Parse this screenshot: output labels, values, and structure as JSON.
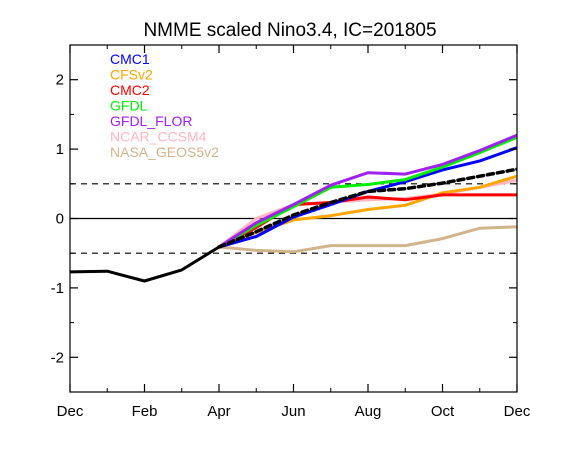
{
  "chart_data": {
    "type": "line",
    "title": "NMME scaled Nino3.4, IC=201805",
    "xlabel": "",
    "ylabel": "",
    "x_tick_labels": [
      "Dec",
      "Feb",
      "Apr",
      "Jun",
      "Aug",
      "Oct",
      "Dec"
    ],
    "x_tick_positions": [
      0,
      2,
      4,
      6,
      8,
      10,
      12
    ],
    "xlim": [
      0,
      12
    ],
    "y_tick_labels": [
      "2",
      "1",
      "0",
      "-1",
      "-2"
    ],
    "y_tick_values": [
      2,
      1,
      0,
      -1,
      -2
    ],
    "ylim": [
      -2.5,
      2.5
    ],
    "reference_lines": [
      {
        "value": 0,
        "style": "solid"
      },
      {
        "value": 0.5,
        "style": "dashed"
      },
      {
        "value": -0.5,
        "style": "dashed"
      }
    ],
    "observed": {
      "color": "#000000",
      "style": "solid",
      "x": [
        0,
        1,
        2,
        3,
        4
      ],
      "values": [
        -0.77,
        -0.76,
        -0.9,
        -0.74,
        -0.41
      ]
    },
    "series": [
      {
        "name": "CMC1",
        "color": "#0000ff",
        "x": [
          4,
          5,
          6,
          7,
          8,
          9,
          10,
          11,
          12
        ],
        "values": [
          -0.41,
          -0.26,
          0.02,
          0.2,
          0.39,
          0.53,
          0.7,
          0.83,
          1.02
        ]
      },
      {
        "name": "CFSv2",
        "color": "#ffa500",
        "x": [
          4,
          5,
          6,
          7,
          8,
          9,
          10,
          11,
          12
        ],
        "values": [
          -0.41,
          -0.2,
          -0.02,
          0.04,
          0.13,
          0.19,
          0.37,
          0.45,
          0.61
        ]
      },
      {
        "name": "CMC2",
        "color": "#ff0000",
        "x": [
          4,
          5,
          6,
          7,
          8,
          9,
          10,
          11,
          12
        ],
        "values": [
          -0.41,
          -0.13,
          0.2,
          0.23,
          0.31,
          0.27,
          0.34,
          0.34,
          0.34
        ]
      },
      {
        "name": "GFDL",
        "color": "#00ee00",
        "x": [
          4,
          5,
          6,
          7,
          8,
          9,
          10,
          11,
          12
        ],
        "values": [
          -0.41,
          -0.1,
          0.17,
          0.45,
          0.49,
          0.56,
          0.74,
          0.95,
          1.17
        ]
      },
      {
        "name": "GFDL_FLOR",
        "color": "#a020f0",
        "x": [
          4,
          5,
          6,
          7,
          8,
          9,
          10,
          11,
          12
        ],
        "values": [
          -0.41,
          -0.06,
          0.2,
          0.48,
          0.66,
          0.64,
          0.78,
          0.98,
          1.2
        ]
      },
      {
        "name": "NCAR_CCSM4",
        "color": "#ffb6c1",
        "x": [
          4,
          5,
          6,
          7,
          8,
          9,
          10,
          11,
          12
        ],
        "values": [
          -0.41,
          0.0,
          0.2,
          0.23,
          0.27,
          0.29,
          0.35,
          0.45,
          0.55
        ]
      },
      {
        "name": "NASA_GEOS5v2",
        "color": "#d2b48c",
        "x": [
          4,
          5,
          6,
          7,
          8,
          9,
          10,
          11,
          12
        ],
        "values": [
          -0.41,
          -0.46,
          -0.48,
          -0.39,
          -0.39,
          -0.39,
          -0.29,
          -0.14,
          -0.12
        ]
      }
    ],
    "ensemble_mean": {
      "color": "#000000",
      "style": "dashed",
      "x": [
        4,
        5,
        6,
        7,
        8,
        9,
        10,
        11,
        12
      ],
      "values": [
        -0.41,
        -0.19,
        0.05,
        0.23,
        0.39,
        0.43,
        0.51,
        0.61,
        0.71
      ]
    },
    "legend_position": "top-left"
  }
}
